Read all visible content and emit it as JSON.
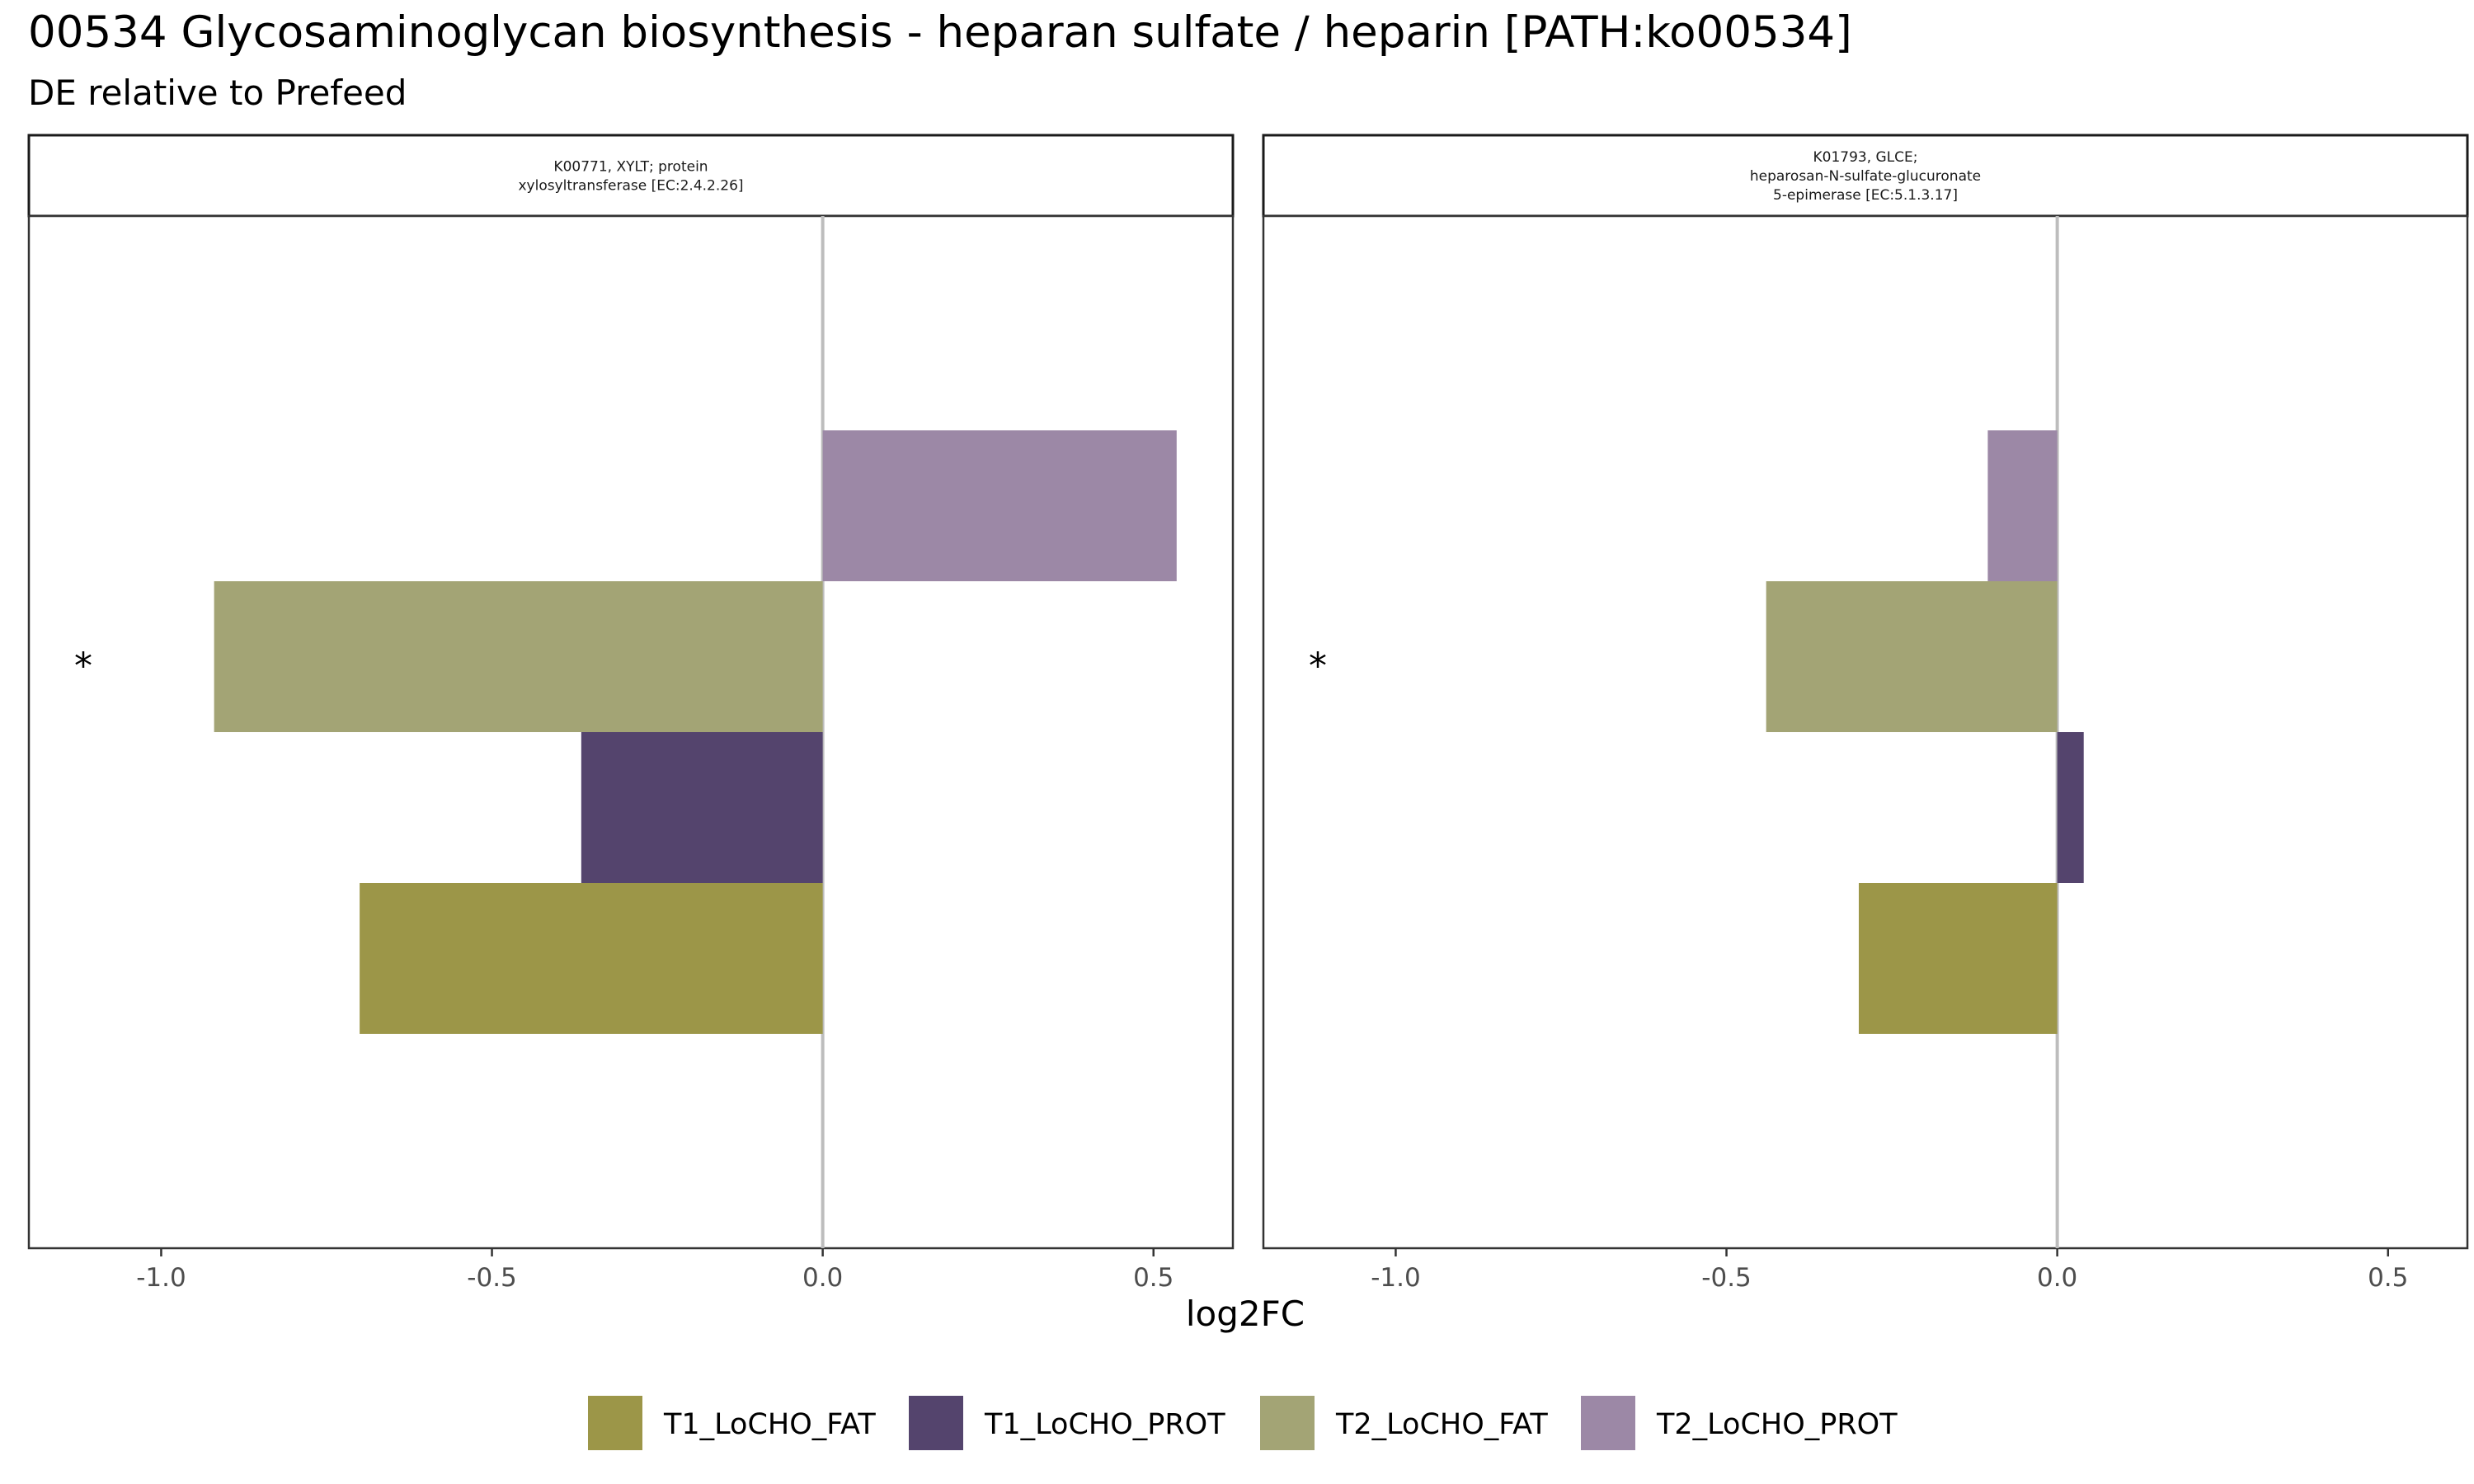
{
  "chart_data": {
    "type": "bar",
    "orientation": "horizontal",
    "title": "00534 Glycosaminoglycan biosynthesis - heparan sulfate / heparin [PATH:ko00534]",
    "subtitle": "DE relative to Prefeed",
    "xlabel": "log2FC",
    "xlim": [
      -1.2,
      0.62
    ],
    "xticks": [
      -1.0,
      -0.5,
      0.0,
      0.5
    ],
    "xtick_labels": [
      "-1.0",
      "-0.5",
      "0.0",
      "0.5"
    ],
    "reference_line_x": 0,
    "grid": false,
    "legend_position": "bottom",
    "categories": [
      "T1_LoCHO_FAT",
      "T1_LoCHO_PROT",
      "T2_LoCHO_FAT",
      "T2_LoCHO_PROT"
    ],
    "colors": {
      "T1_LoCHO_FAT": "#9c9648",
      "T1_LoCHO_PROT": "#54446d",
      "T2_LoCHO_FAT": "#a3a475",
      "T2_LoCHO_PROT": "#9c88a6"
    },
    "panels": [
      {
        "strip_lines": [
          "K00771, XYLT; protein",
          "xylosyltransferase [EC:2.4.2.26]"
        ],
        "values": {
          "T1_LoCHO_FAT": -0.7,
          "T1_LoCHO_PROT": -0.365,
          "T2_LoCHO_FAT": -0.92,
          "T2_LoCHO_PROT": 0.535
        },
        "annotations": [
          {
            "text": "*",
            "category": "T2_LoCHO_FAT"
          }
        ]
      },
      {
        "strip_lines": [
          "K01793, GLCE;",
          "heparosan-N-sulfate-glucuronate",
          "5-epimerase [EC:5.1.3.17]"
        ],
        "values": {
          "T1_LoCHO_FAT": -0.3,
          "T1_LoCHO_PROT": 0.04,
          "T2_LoCHO_FAT": -0.44,
          "T2_LoCHO_PROT": -0.105
        },
        "annotations": [
          {
            "text": "*",
            "category": "T2_LoCHO_FAT"
          }
        ]
      }
    ]
  }
}
